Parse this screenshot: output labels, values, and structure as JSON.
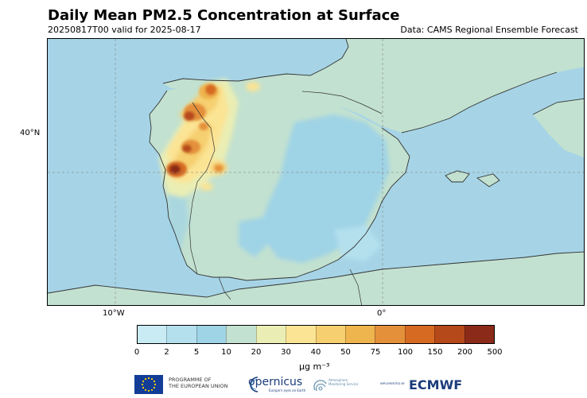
{
  "title": "Daily Mean PM2.5 Concentration at Surface",
  "subtitle_left": "20250817T00 valid for 2025-08-17",
  "subtitle_right": "Data: CAMS Regional Ensemble Forecast",
  "axes": {
    "lat_label": "40°N",
    "lon_labels": [
      "10°W",
      "0°"
    ]
  },
  "colorbar": {
    "bounds": [
      "0",
      "2",
      "5",
      "10",
      "20",
      "30",
      "40",
      "50",
      "75",
      "100",
      "150",
      "200",
      "500"
    ],
    "colors": [
      "#c8ebf4",
      "#b4e0ee",
      "#9fd3e6",
      "#c2e1d0",
      "#eaeeb4",
      "#fbe494",
      "#f6cf70",
      "#eeb44e",
      "#e4903a",
      "#d76a22",
      "#b6491a",
      "#8b2a18"
    ],
    "unit": "µg m⁻³"
  },
  "logos": {
    "eu_line1": "PROGRAMME OF",
    "eu_line2": "THE EUROPEAN UNION",
    "copernicus": "opernicus",
    "copernicus_tagline": "Europe's eyes on Earth",
    "atmosphere_line1": "Atmosphere",
    "atmosphere_line2": "Monitoring Service",
    "implemented_by": "IMPLEMENTED BY",
    "ecmwf": "ECMWF"
  },
  "colors": {
    "sea": "#a6d4e6",
    "land_low": "#c2e1d0",
    "land_clean": "#9fd3e6"
  }
}
